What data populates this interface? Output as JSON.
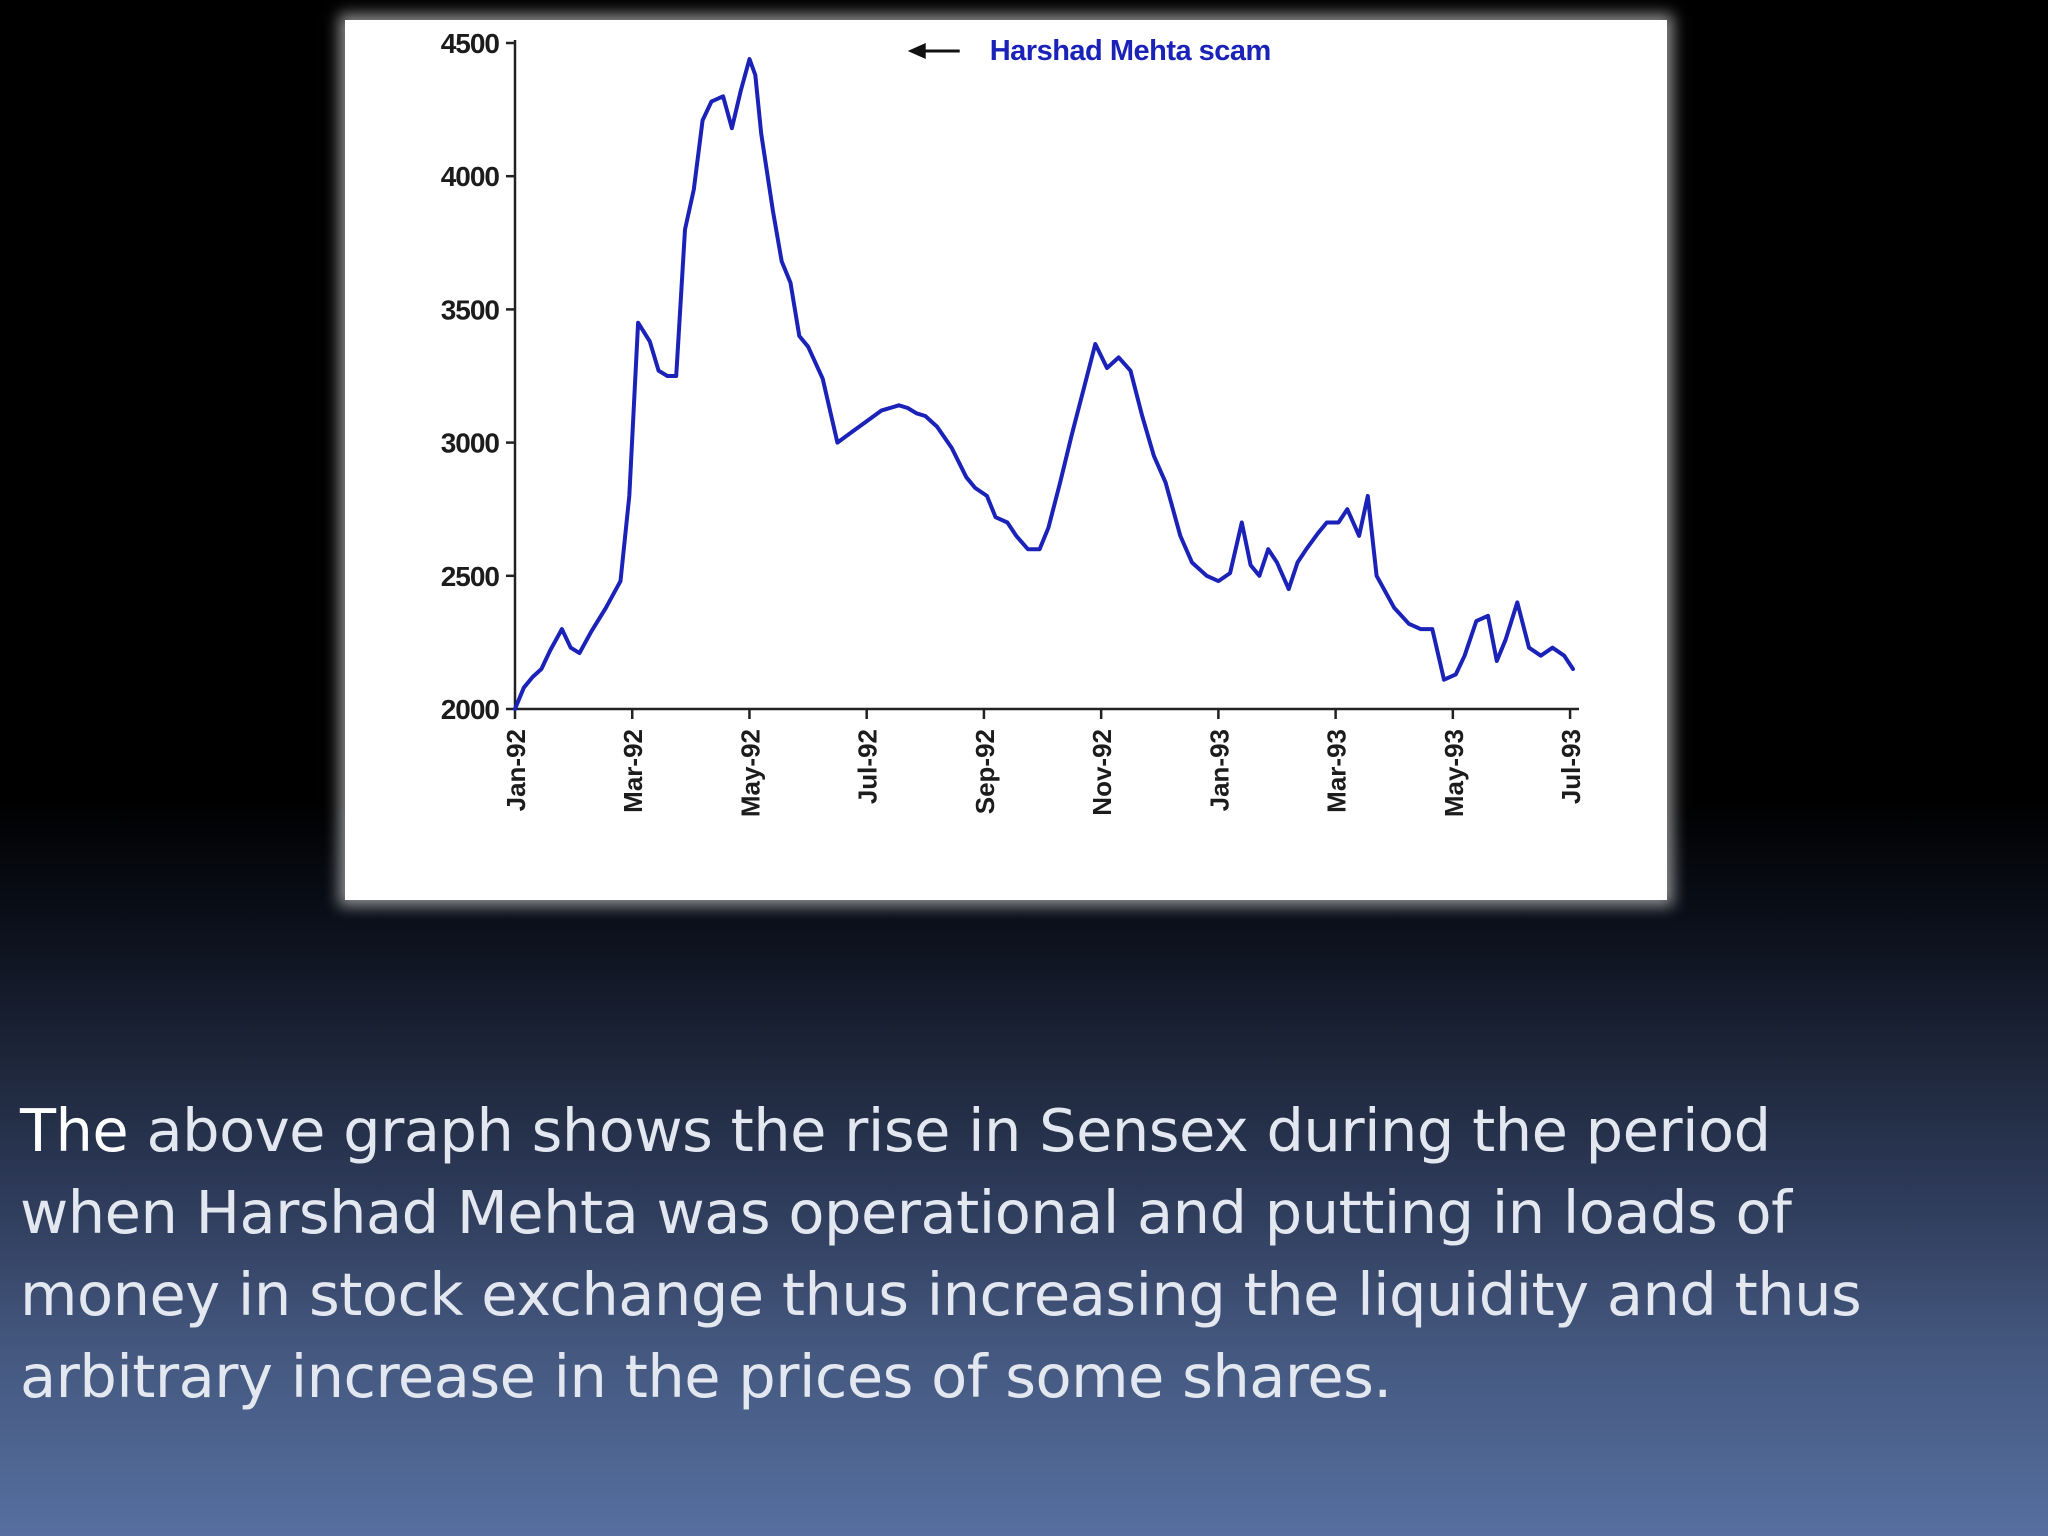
{
  "chart_data": {
    "type": "line",
    "title": "",
    "annotations": [
      {
        "text": "Harshad Mehta scam",
        "x_index": 6.7,
        "y": 4470,
        "arrow": true,
        "color": "#1a22b8"
      }
    ],
    "xlabel": "",
    "ylabel": "",
    "ylim": [
      2000,
      4500
    ],
    "yticks": [
      2000,
      2500,
      3000,
      3500,
      4000,
      4500
    ],
    "ytick_labels": [
      "2000",
      "2500",
      "3000",
      "3500",
      "4000",
      "4500"
    ],
    "xlim": [
      0,
      18.05
    ],
    "xticks": [
      0,
      2,
      4,
      6,
      8,
      10,
      12,
      14,
      16,
      18
    ],
    "xtick_labels": [
      "Jan-92",
      "Mar-92",
      "May-92",
      "Jul-92",
      "Sep-92",
      "Nov-92",
      "Jan-93",
      "Mar-93",
      "May-93",
      "Jul-93"
    ],
    "grid": false,
    "series": [
      {
        "name": "Sensex",
        "color": "#1a22b8",
        "x": [
          0,
          0.15,
          0.3,
          0.45,
          0.6,
          0.8,
          0.95,
          1.1,
          1.3,
          1.55,
          1.8,
          1.95,
          2.1,
          2.3,
          2.45,
          2.6,
          2.75,
          2.9,
          3.05,
          3.2,
          3.35,
          3.55,
          3.7,
          3.85,
          4.0,
          4.1,
          4.2,
          4.4,
          4.55,
          4.7,
          4.85,
          5.0,
          5.25,
          5.5,
          5.75,
          6.0,
          6.25,
          6.55,
          6.7,
          6.85,
          7.0,
          7.2,
          7.45,
          7.7,
          7.85,
          8.05,
          8.2,
          8.4,
          8.55,
          8.75,
          8.95,
          9.1,
          9.3,
          9.5,
          9.7,
          9.9,
          10.1,
          10.3,
          10.5,
          10.7,
          10.9,
          11.1,
          11.35,
          11.55,
          11.8,
          12.0,
          12.2,
          12.4,
          12.55,
          12.7,
          12.85,
          13.0,
          13.2,
          13.35,
          13.5,
          13.7,
          13.85,
          13.95,
          14.05,
          14.2,
          14.4,
          14.55,
          14.7,
          15.0,
          15.25,
          15.45,
          15.65,
          15.85,
          16.05,
          16.2,
          16.4,
          16.6,
          16.75,
          16.9,
          17.1,
          17.3,
          17.5,
          17.7,
          17.9,
          18.05
        ],
        "values": [
          2000,
          2080,
          2120,
          2150,
          2220,
          2300,
          2230,
          2210,
          2290,
          2380,
          2480,
          2800,
          3450,
          3380,
          3270,
          3250,
          3250,
          3800,
          3950,
          4210,
          4280,
          4300,
          4180,
          4320,
          4440,
          4380,
          4160,
          3870,
          3680,
          3600,
          3400,
          3360,
          3240,
          3000,
          3040,
          3080,
          3120,
          3140,
          3130,
          3110,
          3100,
          3060,
          2980,
          2870,
          2830,
          2800,
          2720,
          2700,
          2650,
          2600,
          2600,
          2680,
          2850,
          3030,
          3200,
          3370,
          3280,
          3320,
          3270,
          3100,
          2950,
          2850,
          2650,
          2550,
          2500,
          2480,
          2510,
          2700,
          2540,
          2500,
          2600,
          2550,
          2450,
          2550,
          2600,
          2660,
          2700,
          2700,
          2700,
          2750,
          2650,
          2800,
          2500,
          2380,
          2320,
          2300,
          2300,
          2110,
          2130,
          2200,
          2330,
          2350,
          2180,
          2260,
          2400,
          2230,
          2200,
          2230,
          2200,
          2150
        ]
      }
    ]
  },
  "caption": {
    "lead": "The",
    "rest": " above graph shows the rise in Sensex during the period when Harshad Mehta was operational and putting in loads of money in stock exchange thus increasing the liquidity and thus arbitrary increase in the prices of some shares."
  }
}
